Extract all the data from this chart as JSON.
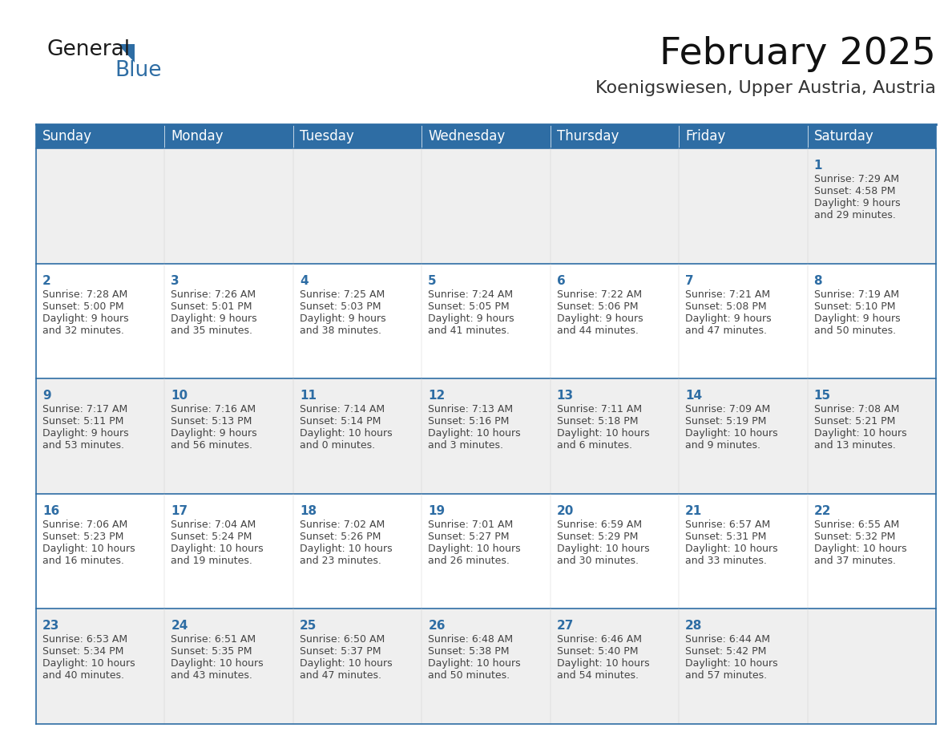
{
  "title": "February 2025",
  "subtitle": "Koenigswiesen, Upper Austria, Austria",
  "header_bg": "#2E6DA4",
  "header_text_color": "#FFFFFF",
  "cell_bg_odd": "#EFEFEF",
  "cell_bg_even": "#FFFFFF",
  "border_color": "#2E6DA4",
  "day_number_color": "#2E6DA4",
  "text_color": "#444444",
  "days_of_week": [
    "Sunday",
    "Monday",
    "Tuesday",
    "Wednesday",
    "Thursday",
    "Friday",
    "Saturday"
  ],
  "weeks": [
    [
      {
        "day": null,
        "info": null
      },
      {
        "day": null,
        "info": null
      },
      {
        "day": null,
        "info": null
      },
      {
        "day": null,
        "info": null
      },
      {
        "day": null,
        "info": null
      },
      {
        "day": null,
        "info": null
      },
      {
        "day": 1,
        "info": "Sunrise: 7:29 AM\nSunset: 4:58 PM\nDaylight: 9 hours\nand 29 minutes."
      }
    ],
    [
      {
        "day": 2,
        "info": "Sunrise: 7:28 AM\nSunset: 5:00 PM\nDaylight: 9 hours\nand 32 minutes."
      },
      {
        "day": 3,
        "info": "Sunrise: 7:26 AM\nSunset: 5:01 PM\nDaylight: 9 hours\nand 35 minutes."
      },
      {
        "day": 4,
        "info": "Sunrise: 7:25 AM\nSunset: 5:03 PM\nDaylight: 9 hours\nand 38 minutes."
      },
      {
        "day": 5,
        "info": "Sunrise: 7:24 AM\nSunset: 5:05 PM\nDaylight: 9 hours\nand 41 minutes."
      },
      {
        "day": 6,
        "info": "Sunrise: 7:22 AM\nSunset: 5:06 PM\nDaylight: 9 hours\nand 44 minutes."
      },
      {
        "day": 7,
        "info": "Sunrise: 7:21 AM\nSunset: 5:08 PM\nDaylight: 9 hours\nand 47 minutes."
      },
      {
        "day": 8,
        "info": "Sunrise: 7:19 AM\nSunset: 5:10 PM\nDaylight: 9 hours\nand 50 minutes."
      }
    ],
    [
      {
        "day": 9,
        "info": "Sunrise: 7:17 AM\nSunset: 5:11 PM\nDaylight: 9 hours\nand 53 minutes."
      },
      {
        "day": 10,
        "info": "Sunrise: 7:16 AM\nSunset: 5:13 PM\nDaylight: 9 hours\nand 56 minutes."
      },
      {
        "day": 11,
        "info": "Sunrise: 7:14 AM\nSunset: 5:14 PM\nDaylight: 10 hours\nand 0 minutes."
      },
      {
        "day": 12,
        "info": "Sunrise: 7:13 AM\nSunset: 5:16 PM\nDaylight: 10 hours\nand 3 minutes."
      },
      {
        "day": 13,
        "info": "Sunrise: 7:11 AM\nSunset: 5:18 PM\nDaylight: 10 hours\nand 6 minutes."
      },
      {
        "day": 14,
        "info": "Sunrise: 7:09 AM\nSunset: 5:19 PM\nDaylight: 10 hours\nand 9 minutes."
      },
      {
        "day": 15,
        "info": "Sunrise: 7:08 AM\nSunset: 5:21 PM\nDaylight: 10 hours\nand 13 minutes."
      }
    ],
    [
      {
        "day": 16,
        "info": "Sunrise: 7:06 AM\nSunset: 5:23 PM\nDaylight: 10 hours\nand 16 minutes."
      },
      {
        "day": 17,
        "info": "Sunrise: 7:04 AM\nSunset: 5:24 PM\nDaylight: 10 hours\nand 19 minutes."
      },
      {
        "day": 18,
        "info": "Sunrise: 7:02 AM\nSunset: 5:26 PM\nDaylight: 10 hours\nand 23 minutes."
      },
      {
        "day": 19,
        "info": "Sunrise: 7:01 AM\nSunset: 5:27 PM\nDaylight: 10 hours\nand 26 minutes."
      },
      {
        "day": 20,
        "info": "Sunrise: 6:59 AM\nSunset: 5:29 PM\nDaylight: 10 hours\nand 30 minutes."
      },
      {
        "day": 21,
        "info": "Sunrise: 6:57 AM\nSunset: 5:31 PM\nDaylight: 10 hours\nand 33 minutes."
      },
      {
        "day": 22,
        "info": "Sunrise: 6:55 AM\nSunset: 5:32 PM\nDaylight: 10 hours\nand 37 minutes."
      }
    ],
    [
      {
        "day": 23,
        "info": "Sunrise: 6:53 AM\nSunset: 5:34 PM\nDaylight: 10 hours\nand 40 minutes."
      },
      {
        "day": 24,
        "info": "Sunrise: 6:51 AM\nSunset: 5:35 PM\nDaylight: 10 hours\nand 43 minutes."
      },
      {
        "day": 25,
        "info": "Sunrise: 6:50 AM\nSunset: 5:37 PM\nDaylight: 10 hours\nand 47 minutes."
      },
      {
        "day": 26,
        "info": "Sunrise: 6:48 AM\nSunset: 5:38 PM\nDaylight: 10 hours\nand 50 minutes."
      },
      {
        "day": 27,
        "info": "Sunrise: 6:46 AM\nSunset: 5:40 PM\nDaylight: 10 hours\nand 54 minutes."
      },
      {
        "day": 28,
        "info": "Sunrise: 6:44 AM\nSunset: 5:42 PM\nDaylight: 10 hours\nand 57 minutes."
      },
      {
        "day": null,
        "info": null
      }
    ]
  ],
  "logo_general_color": "#1a1a1a",
  "logo_blue_color": "#2E6DA4",
  "title_fontsize": 34,
  "subtitle_fontsize": 16,
  "header_fontsize": 12,
  "day_num_fontsize": 11,
  "cell_text_fontsize": 9
}
